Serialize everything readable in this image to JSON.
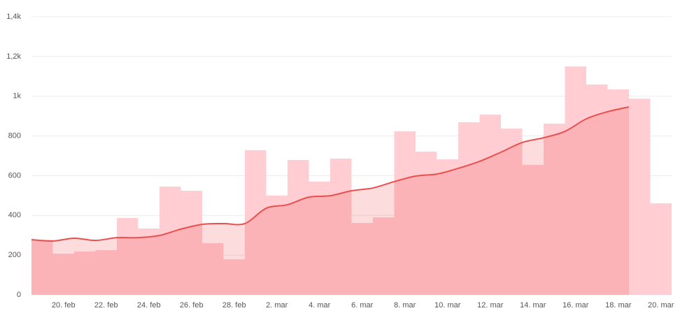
{
  "chart_data": {
    "type": "bar",
    "categories": [
      null,
      "20. feb",
      null,
      "22. feb",
      null,
      "24. feb",
      null,
      "26. feb",
      null,
      "28. feb",
      null,
      "2. mar",
      null,
      "4. mar",
      null,
      "6. mar",
      null,
      "8. mar",
      null,
      "10. mar",
      null,
      "12. mar",
      null,
      "14. mar",
      null,
      "16. mar",
      null,
      "18. mar",
      null,
      "20. mar"
    ],
    "series": [
      {
        "type": "bar",
        "color": "#ffcdd2",
        "values": [
          278,
          207,
          218,
          225,
          387,
          334,
          545,
          524,
          260,
          179,
          728,
          500,
          679,
          570,
          686,
          362,
          390,
          823,
          721,
          682,
          869,
          907,
          837,
          654,
          862,
          1150,
          1059,
          1034,
          988,
          461
        ]
      },
      {
        "type": "line",
        "color": "#e8504f",
        "values": [
          278,
          271,
          285,
          274,
          288,
          288,
          299,
          331,
          355,
          359,
          359,
          436,
          454,
          492,
          499,
          524,
          538,
          570,
          598,
          608,
          637,
          672,
          718,
          767,
          791,
          823,
          886,
          922,
          946,
          null
        ]
      }
    ],
    "ylim": [
      0,
      1400
    ],
    "yticks": [
      0,
      200,
      400,
      600,
      800,
      {
        "value": 1000,
        "label": "1k"
      },
      {
        "value": 1200,
        "label": "1,2k"
      },
      {
        "value": 1400,
        "label": "1,4k"
      }
    ],
    "grid": true
  }
}
